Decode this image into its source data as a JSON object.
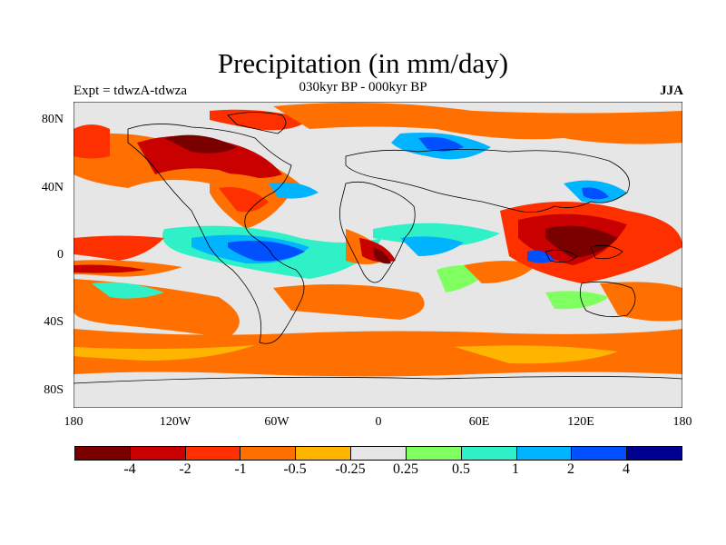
{
  "header": {
    "title": "Precipitation (in mm/day)",
    "subtitle": "030kyr BP - 000kyr BP",
    "experiment": "Expt = tdwzA-tdwza",
    "season": "JJA"
  },
  "axes": {
    "lat_labels": [
      "80N",
      "40N",
      "0",
      "40S",
      "80S"
    ],
    "lon_labels": [
      "180",
      "120W",
      "60W",
      "0",
      "60E",
      "120E",
      "180"
    ]
  },
  "colorbar": {
    "colors": [
      "#7a0000",
      "#c80000",
      "#ff3000",
      "#ff7000",
      "#ffb400",
      "#e6e6e6",
      "#80ff60",
      "#30f0c8",
      "#00b4ff",
      "#0050ff",
      "#000090"
    ],
    "labels": [
      "-4",
      "-2",
      "-1",
      "-0.5",
      "-0.25",
      "0.25",
      "0.5",
      "1",
      "2",
      "4"
    ]
  },
  "colors": {
    "background_anomaly": "#e6e6e6",
    "coastline": "#000000"
  }
}
